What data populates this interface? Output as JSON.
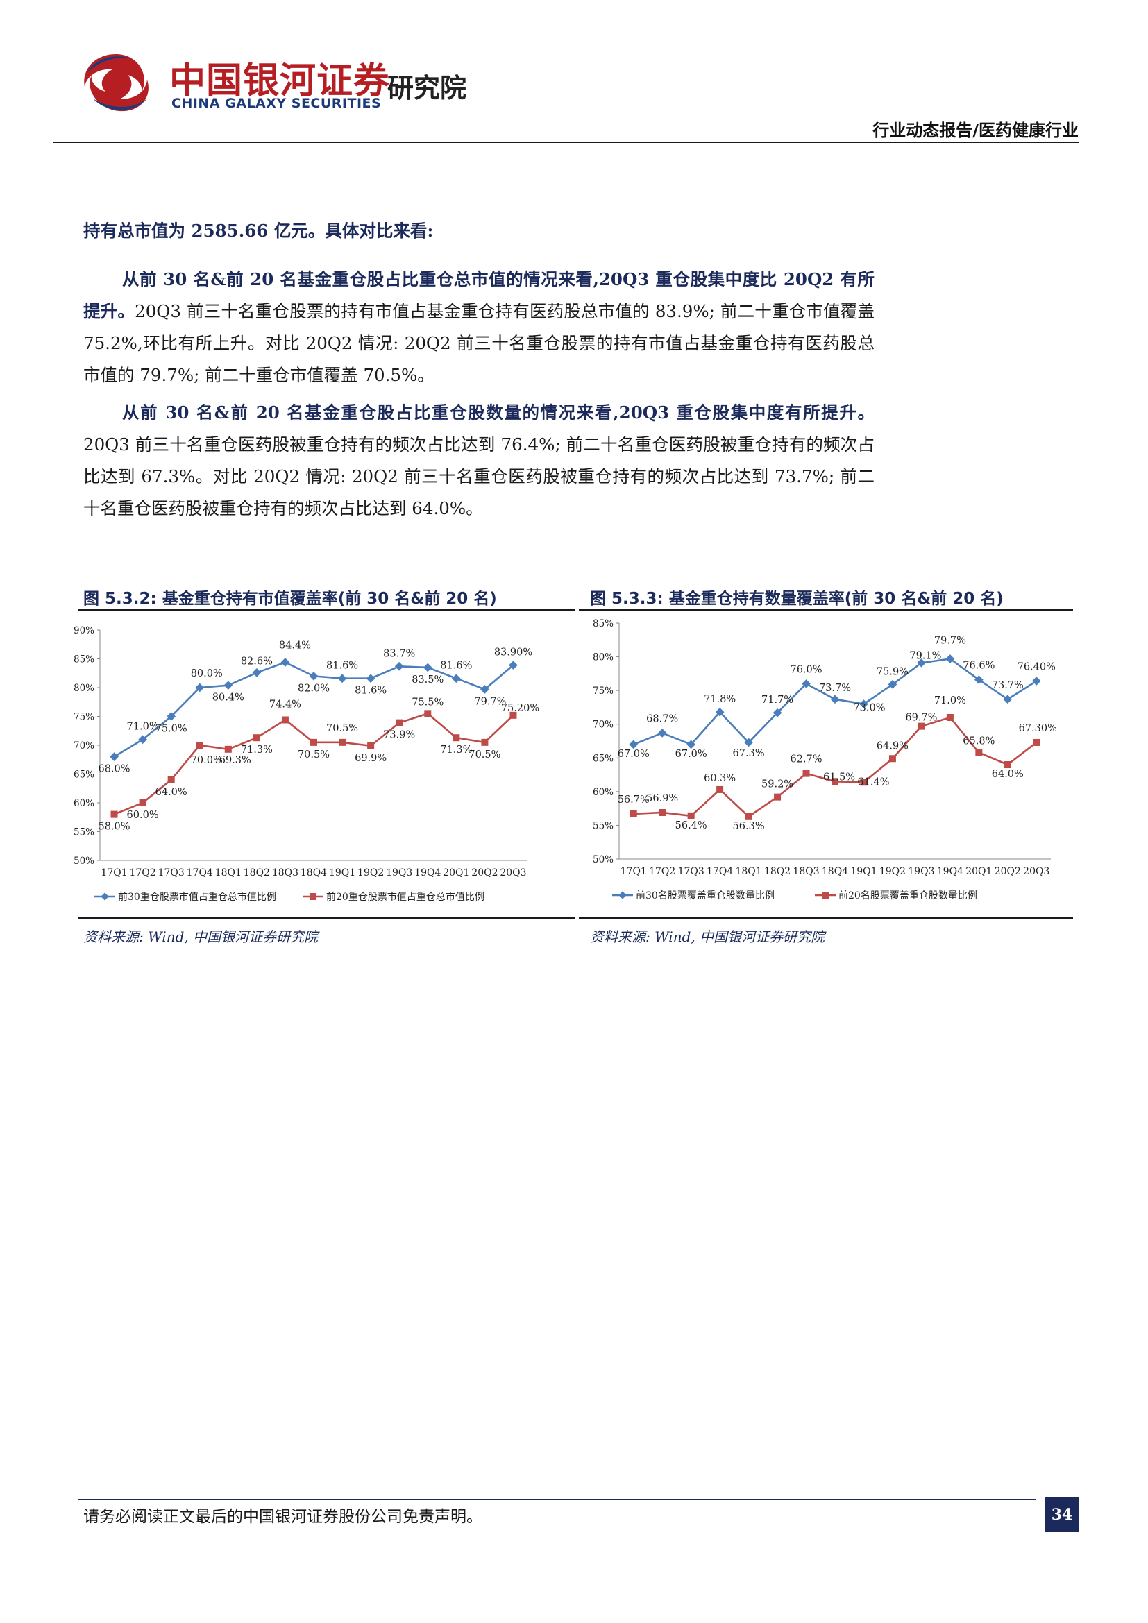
{
  "header": {
    "brand_cn": "中国银河证券",
    "brand_en": "CHINA GALAXY SECURITIES",
    "dept": "研究院",
    "report_type": "行业动态报告/医药健康行业"
  },
  "body": {
    "lead": "持有总市值为 2585.66 亿元。具体对比来看:",
    "p1_bold": "从前 30 名&前 20 名基金重仓股占比重仓总市值的情况来看,20Q3 重仓股集中度比 20Q2 有所提升。",
    "p1_text": "20Q3 前三十名重仓股票的持有市值占基金重仓持有医药股总市值的 83.9%; 前二十重仓市值覆盖 75.2%,环比有所上升。对比 20Q2 情况: 20Q2 前三十名重仓股票的持有市值占基金重仓持有医药股总市值的 79.7%; 前二十重仓市值覆盖 70.5%。",
    "p2_bold": "从前 30 名&前 20 名基金重仓股占比重仓股数量的情况来看,20Q3 重仓股集中度有所提升。",
    "p2_text": "20Q3 前三十名重仓医药股被重仓持有的频次占比达到 76.4%; 前二十名重仓医药股被重仓持有的频次占比达到 67.3%。对比 20Q2 情况: 20Q2 前三十名重仓医药股被重仓持有的频次占比达到 73.7%; 前二十名重仓医药股被重仓持有的频次占比达到 64.0%。"
  },
  "figures": [
    {
      "title": "图 5.3.2: 基金重仓持有市值覆盖率(前 30 名&前 20 名)",
      "source": "资料来源: Wind, 中国银河证券研究院"
    },
    {
      "title": "图 5.3.3: 基金重仓持有数量覆盖率(前 30 名&前 20 名)",
      "source": "资料来源: Wind, 中国银河证券研究院"
    }
  ],
  "footer": {
    "disclaimer": "请务必阅读正文最后的中国银河证券股份公司免责声明。",
    "page_number": "34"
  },
  "colors": {
    "series_blue": "#4a7ebb",
    "series_red": "#be4b48",
    "brand_red": "#b51f24",
    "brand_navy": "#1b2a5a"
  },
  "chart_data": [
    {
      "type": "line",
      "categories": [
        "17Q1",
        "17Q2",
        "17Q3",
        "17Q4",
        "18Q1",
        "18Q2",
        "18Q3",
        "18Q4",
        "19Q1",
        "19Q2",
        "19Q3",
        "19Q4",
        "20Q1",
        "20Q2",
        "20Q3"
      ],
      "ylim": [
        50,
        90
      ],
      "yticks": [
        "50%",
        "55%",
        "60%",
        "65%",
        "70%",
        "75%",
        "80%",
        "85%",
        "90%"
      ],
      "series": [
        {
          "name": "前30重仓股票市值占重仓总市值比例",
          "values": [
            68.0,
            71.0,
            75.0,
            80.0,
            80.4,
            82.6,
            84.4,
            82.0,
            81.6,
            81.6,
            83.7,
            83.5,
            81.6,
            79.7,
            83.9
          ],
          "labels": [
            "68.0%",
            "71.0%",
            "75.0%",
            "80.0%",
            "80.4%",
            "82.6%",
            "84.4%",
            "82.0%",
            "81.6%",
            "81.6%",
            "83.7%",
            "83.5%",
            "81.6%",
            "79.7%",
            "83.90%"
          ]
        },
        {
          "name": "前20重仓股票市值占重仓总市值比例",
          "values": [
            58.0,
            60.0,
            64.0,
            70.0,
            69.3,
            71.3,
            74.4,
            70.5,
            70.5,
            69.9,
            73.9,
            75.5,
            71.3,
            70.5,
            75.2
          ],
          "labels": [
            "58.0%",
            "60.0%",
            "64.0%",
            "70.0%",
            "69.3%",
            "71.3%",
            "74.4%",
            "70.5%",
            "70.5%",
            "69.9%",
            "73.9%",
            "75.5%",
            "71.3%",
            "70.5%",
            "75.20%"
          ]
        }
      ],
      "legend": "bottom"
    },
    {
      "type": "line",
      "categories": [
        "17Q1",
        "17Q2",
        "17Q3",
        "17Q4",
        "18Q1",
        "18Q2",
        "18Q3",
        "18Q4",
        "19Q1",
        "19Q2",
        "19Q3",
        "19Q4",
        "20Q1",
        "20Q2",
        "20Q3"
      ],
      "ylim": [
        50,
        85
      ],
      "yticks": [
        "50%",
        "55%",
        "60%",
        "65%",
        "70%",
        "75%",
        "80%",
        "85%"
      ],
      "series": [
        {
          "name": "前30名股票覆盖重仓股数量比例",
          "values": [
            67.0,
            68.7,
            67.0,
            71.8,
            67.3,
            71.7,
            76.0,
            73.7,
            73.0,
            75.9,
            79.1,
            79.7,
            76.6,
            73.7,
            76.4
          ],
          "labels": [
            "67.0%",
            "68.7%",
            "67.0%",
            "71.8%",
            "67.3%",
            "71.7%",
            "76.0%",
            "73.7%",
            "73.0%",
            "75.9%",
            "79.1%",
            "79.7%",
            "76.6%",
            "73.7%",
            "76.40%"
          ]
        },
        {
          "name": "前20名股票覆盖重仓股数量比例",
          "values": [
            56.7,
            56.9,
            56.4,
            60.3,
            56.3,
            59.2,
            62.7,
            61.5,
            61.4,
            64.9,
            69.7,
            71.0,
            65.8,
            64.0,
            67.3
          ],
          "labels": [
            "56.7%",
            "56.9%",
            "56.4%",
            "60.3%",
            "56.3%",
            "59.2%",
            "62.7%",
            "61.5%",
            "61.4%",
            "64.9%",
            "69.7%",
            "71.0%",
            "65.8%",
            "64.0%",
            "67.30%"
          ]
        }
      ],
      "legend": "bottom"
    }
  ]
}
